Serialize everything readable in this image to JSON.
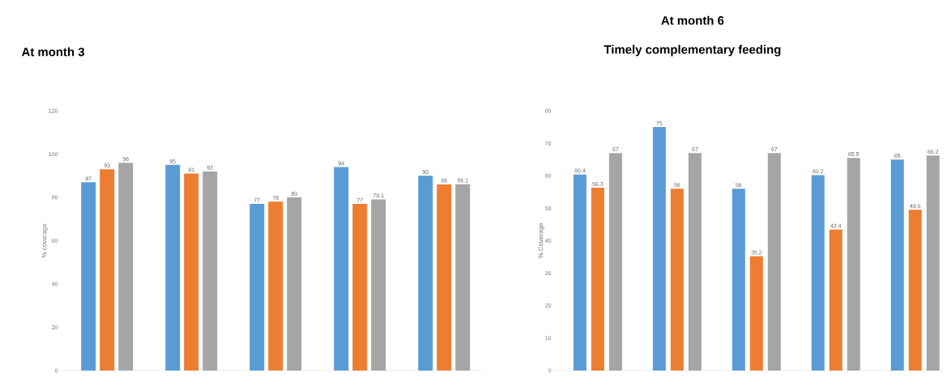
{
  "chart_data": [
    {
      "type": "bar",
      "title": "At month 3",
      "ylabel": "% coverage",
      "categories": [
        null,
        null,
        null,
        null,
        null
      ],
      "series": [
        {
          "color": "#5b9bd5",
          "values": [
            87,
            95,
            77,
            94,
            90
          ]
        },
        {
          "color": "#ed7d31",
          "values": [
            93,
            91,
            78,
            77,
            86
          ]
        },
        {
          "color": "#a5a5a5",
          "values": [
            96,
            92,
            80,
            79.1,
            86.1
          ]
        }
      ],
      "ylim": [
        0,
        120
      ],
      "yticks": [
        0,
        20,
        40,
        60,
        80,
        100,
        120
      ],
      "data_labels": true
    },
    {
      "type": "bar",
      "title": "At month 6",
      "subtitle": "Timely complementary feeding",
      "ylabel": "% Coverage",
      "categories": [
        null,
        null,
        null,
        null,
        null
      ],
      "series": [
        {
          "color": "#5b9bd5",
          "values": [
            60.4,
            75,
            56,
            60.2,
            65
          ]
        },
        {
          "color": "#ed7d31",
          "values": [
            56.3,
            56,
            35.2,
            43.4,
            49.5
          ]
        },
        {
          "color": "#a5a5a5",
          "values": [
            67,
            67,
            67,
            65.5,
            66.2
          ]
        }
      ],
      "ylim": [
        0,
        80
      ],
      "yticks": [
        0,
        10,
        20,
        30,
        40,
        50,
        60,
        70,
        80
      ],
      "data_labels": true
    }
  ]
}
